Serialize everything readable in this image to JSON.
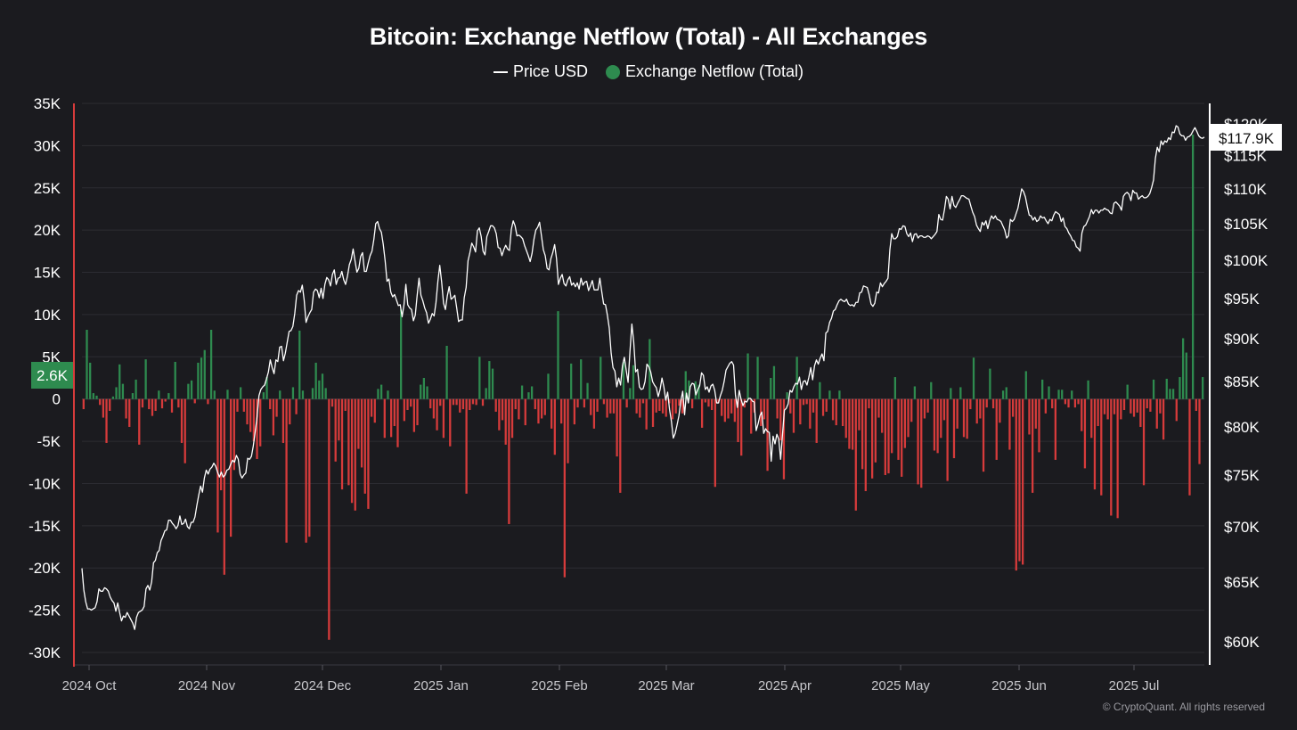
{
  "title": "Bitcoin: Exchange Netflow (Total) - All Exchanges",
  "legend": {
    "price_label": "Price USD",
    "netflow_label": "Exchange Netflow (Total)"
  },
  "copyright": "© CryptoQuant. All rights reserved",
  "colors": {
    "background": "#1b1b1f",
    "positive": "#2e8b4f",
    "negative": "#d63b3b",
    "price_line": "#ffffff"
  },
  "chart_data": {
    "type": "bar+line",
    "title": "Bitcoin: Exchange Netflow (Total) - All Exchanges",
    "x_tick_labels": [
      "2024 Oct",
      "2024 Nov",
      "2024 Dec",
      "2025 Jan",
      "2025 Feb",
      "2025 Mar",
      "2025 Apr",
      "2025 May",
      "2025 Jun",
      "2025 Jul"
    ],
    "left_axis": {
      "label": "Exchange Netflow (Total)",
      "ylim": [
        -30000,
        35000
      ],
      "ticks": [
        35000,
        30000,
        25000,
        20000,
        15000,
        10000,
        5000,
        0,
        -5000,
        -10000,
        -15000,
        -20000,
        -25000,
        -30000
      ],
      "tick_labels": [
        "35K",
        "30K",
        "25K",
        "20K",
        "15K",
        "10K",
        "5K",
        "0",
        "-5K",
        "-10K",
        "-15K",
        "-20K",
        "-25K",
        "-30K"
      ]
    },
    "right_axis": {
      "label": "Price USD",
      "scale": "log",
      "ticks": [
        120000,
        115000,
        110000,
        105000,
        100000,
        95000,
        90000,
        85000,
        80000,
        75000,
        70000,
        65000,
        60000
      ],
      "tick_labels": [
        "$120K",
        "$115K",
        "$110K",
        "$105K",
        "$100K",
        "$95K",
        "$90K",
        "$85K",
        "$80K",
        "$75K",
        "$70K",
        "$65K",
        "$60K"
      ]
    },
    "current_netflow_label": "2.6K",
    "current_price_label": "$117.9K",
    "series": [
      {
        "name": "Exchange Netflow (Total)",
        "type": "bar",
        "values": [
          -1200,
          8200,
          4300,
          700,
          400,
          -700,
          -2200,
          -5200,
          -1400,
          300,
          1400,
          4100,
          1800,
          -2300,
          -3300,
          700,
          2300,
          -5400,
          -1000,
          4700,
          -1200,
          -2000,
          -1400,
          1000,
          -1100,
          -300,
          700,
          -1600,
          4400,
          -1000,
          -5200,
          -7600,
          1800,
          2200,
          -500,
          4300,
          4900,
          5800,
          -600,
          8200,
          1000,
          -15800,
          -10800,
          -20800,
          1100,
          -16300,
          -8400,
          -1500,
          1400,
          -1500,
          -3000,
          -3900,
          -5000,
          -7100,
          -5600,
          800,
          2600,
          -1200,
          -4300,
          -2100,
          1000,
          -5200,
          -17000,
          -3000,
          1400,
          -1800,
          8100,
          1000,
          -17000,
          -16300,
          1300,
          4300,
          2200,
          3000,
          1300,
          -28500,
          -900,
          -7400,
          -4900,
          -10700,
          -1400,
          -10200,
          -12300,
          -13200,
          -5900,
          -8100,
          -11200,
          -13000,
          -2100,
          -2800,
          1200,
          1700,
          -4600,
          1000,
          -4500,
          -3200,
          -5700,
          10600,
          -2600,
          -1300,
          -900,
          -3900,
          -3100,
          1700,
          2500,
          1500,
          -1100,
          -2300,
          -3700,
          -800,
          -4600,
          6300,
          -5600,
          -700,
          -700,
          -1600,
          -1200,
          -11200,
          -1300,
          -600,
          -700,
          5000,
          -800,
          1300,
          4500,
          3600,
          -1500,
          -3700,
          -2500,
          -5400,
          -14800,
          -4600,
          -1200,
          -2400,
          1600,
          -3100,
          800,
          1500,
          -1200,
          -2900,
          -2300,
          -1900,
          3000,
          -3500,
          -6600,
          10400,
          -2900,
          -21100,
          -7600,
          4200,
          -3000,
          -1000,
          4700,
          -1000,
          1900,
          -1900,
          -3500,
          -1500,
          5000,
          -600,
          -2200,
          -1700,
          -1700,
          -6800,
          -11100,
          4400,
          -1000,
          1300,
          4000,
          -1700,
          -2200,
          -500,
          -3600,
          7100,
          -3300,
          -1600,
          -1400,
          -1700,
          -2100,
          -500,
          -2400,
          -1700,
          -800,
          -1700,
          3300,
          2200,
          -1100,
          2100,
          1700,
          -3400,
          -400,
          -900,
          -1300,
          -10400,
          -500,
          -2000,
          -2700,
          -2300,
          -1700,
          -2700,
          -5100,
          -6700,
          -1000,
          5400,
          -4100,
          -1600,
          5000,
          -3200,
          -2400,
          -8500,
          2500,
          3900,
          -2300,
          -4900,
          -9500,
          800,
          -1700,
          -4000,
          5000,
          -3000,
          -700,
          -600,
          -3500,
          -1600,
          -5200,
          2000,
          -2000,
          -1500,
          1000,
          -2500,
          -3100,
          1000,
          -3200,
          -4600,
          -5900,
          -6000,
          -13200,
          -3700,
          -8300,
          -10900,
          -1100,
          -9400,
          -7500,
          -2200,
          -4000,
          -9000,
          -8800,
          -6400,
          2600,
          -7200,
          -9200,
          -5800,
          -4500,
          -2700,
          1500,
          -10100,
          -10500,
          -2300,
          -1600,
          2000,
          -6100,
          -6400,
          -4600,
          -2500,
          -9700,
          1300,
          -7000,
          -3500,
          1400,
          -4500,
          -4700,
          -1200,
          4900,
          -2900,
          -2300,
          -8600,
          -1000,
          3600,
          -1100,
          -7200,
          -2800,
          1000,
          1400,
          -6000,
          -2100,
          -20300,
          -19200,
          -19600,
          3300,
          -4200,
          -11100,
          -3500,
          -6300,
          2300,
          -1700,
          1500,
          -1100,
          -7200,
          1100,
          1100,
          -600,
          -1000,
          1000,
          -1000,
          -600,
          -3800,
          -8200,
          2200,
          -4600,
          -10700,
          -3200,
          -11400,
          -1800,
          -2400,
          -13800,
          -1800,
          -14100,
          -2400,
          -1300,
          1700,
          -1700,
          -2100,
          -1600,
          -3300,
          -10200,
          -1100,
          -1500,
          2300,
          -3500,
          -1700,
          -4800,
          2400,
          1200,
          1200,
          -2600,
          2600,
          7200,
          5500,
          -11400,
          31300,
          -1400,
          -7700,
          2600
        ]
      },
      {
        "name": "Price USD",
        "type": "line",
        "values": [
          66200,
          64300,
          63300,
          62700,
          62700,
          62600,
          62700,
          62800,
          63300,
          64400,
          64200,
          64200,
          64500,
          64400,
          64200,
          63700,
          63400,
          63200,
          62500,
          63200,
          62400,
          61700,
          62100,
          62000,
          62400,
          62100,
          61800,
          61500,
          61000,
          62000,
          62400,
          62500,
          62600,
          62900,
          64400,
          64700,
          64300,
          65000,
          66700,
          66900,
          67600,
          67800,
          68700,
          69100,
          69600,
          69700,
          70600,
          70600,
          70300,
          70100,
          69800,
          70100,
          71000,
          70200,
          70300,
          70700,
          70000,
          69800,
          70400,
          70400,
          70900,
          72000,
          73000,
          73900,
          73300,
          74700,
          75500,
          75100,
          75600,
          75800,
          76200,
          75900,
          75300,
          74800,
          75300,
          74800,
          75000,
          75500,
          75600,
          76100,
          76500,
          76300,
          77000,
          76600,
          75100,
          74700,
          75000,
          75200,
          76700,
          76600,
          76900,
          78000,
          79500,
          81100,
          83400,
          84100,
          84400,
          84600,
          85300,
          86100,
          87500,
          86600,
          85900,
          87500,
          87300,
          89000,
          89100,
          87400,
          88300,
          89600,
          90900,
          91000,
          91500,
          93100,
          95400,
          96000,
          95800,
          96700,
          94800,
          92000,
          92700,
          93200,
          93600,
          95800,
          96200,
          96000,
          95100,
          96300,
          95000,
          96800,
          97700,
          97400,
          96600,
          98100,
          98700,
          96800,
          97600,
          97700,
          98500,
          97400,
          96800,
          97900,
          99400,
          100100,
          101500,
          99900,
          98400,
          98900,
          100500,
          101000,
          98500,
          98500,
          99600,
          100600,
          101200,
          102800,
          105000,
          105300,
          104300,
          103800,
          102100,
          99900,
          97200,
          97500,
          95800,
          95200,
          95500,
          94800,
          94100,
          94200,
          92700,
          94200,
          96800,
          94200,
          93800,
          93600,
          92200,
          92900,
          95400,
          97600,
          95400,
          94700,
          93800,
          93200,
          91900,
          92400,
          93100,
          92800,
          94500,
          97200,
          99300,
          97100,
          94400,
          93600,
          95300,
          96500,
          94900,
          95100,
          95400,
          93800,
          92100,
          92300,
          92300,
          95100,
          96400,
          99900,
          101000,
          102300,
          101800,
          101100,
          104000,
          104400,
          103200,
          101200,
          100700,
          103200,
          103900,
          104700,
          104700,
          104400,
          103600,
          101700,
          101600,
          100600,
          101400,
          102000,
          101500,
          101300,
          104200,
          105400,
          104700,
          103300,
          103400,
          103200,
          102900,
          102000,
          101300,
          100600,
          99800,
          100900,
          102800,
          104100,
          104500,
          105200,
          103300,
          101400,
          100600,
          98900,
          98700,
          100200,
          101000,
          102100,
          100200,
          96800,
          97600,
          98100,
          96900,
          96600,
          97400,
          97800,
          96700,
          97000,
          96500,
          97000,
          96200,
          97600,
          96700,
          97100,
          97200,
          96000,
          96600,
          97300,
          96100,
          96100,
          96100,
          97600,
          95900,
          94300,
          94200,
          92900,
          91300,
          88300,
          86600,
          86200,
          84400,
          85400,
          84600,
          86800,
          87800,
          86300,
          84900,
          88500,
          91800,
          89600,
          86100,
          86400,
          84400,
          84100,
          84200,
          85000,
          87000,
          86700,
          86100,
          85000,
          84600,
          84300,
          83300,
          84100,
          85400,
          84400,
          82900,
          83800,
          81900,
          80600,
          78800,
          79300,
          80200,
          81200,
          82800,
          83900,
          81300,
          83700,
          82600,
          84400,
          84800,
          84700,
          83500,
          84100,
          84500,
          86000,
          85700,
          84100,
          84400,
          83800,
          84500,
          84700,
          84000,
          82600,
          82600,
          83400,
          84000,
          85000,
          86300,
          86700,
          87100,
          87300,
          86900,
          83500,
          82100,
          84000,
          83000,
          82300,
          82800,
          82700,
          83100,
          83100,
          82800,
          82700,
          79600,
          80300,
          81200,
          81600,
          79300,
          79800,
          79500,
          79400,
          76400,
          79000,
          78200,
          79200,
          78700,
          76600,
          79200,
          81800,
          82000,
          82500,
          84000,
          83800,
          84400,
          84800,
          84700,
          85500,
          84100,
          85000,
          85100,
          84600,
          85500,
          86600,
          85200,
          86800,
          87500,
          87000,
          87700,
          88200,
          87400,
          90700,
          90900,
          92000,
          92500,
          93400,
          93600,
          94200,
          94700,
          94900,
          94700,
          94600,
          94900,
          94300,
          94100,
          94200,
          94000,
          94500,
          94500,
          95700,
          95800,
          96600,
          96500,
          96400,
          95500,
          94300,
          94000,
          94400,
          95800,
          95700,
          97000,
          96500,
          96900,
          97200,
          97600,
          101400,
          103600,
          102900,
          102900,
          103200,
          104300,
          104200,
          104700,
          104600,
          103600,
          103200,
          103700,
          102500,
          103500,
          103600,
          103000,
          103300,
          103300,
          103100,
          103100,
          103300,
          103200,
          102900,
          103200,
          103500,
          103900,
          106300,
          105600,
          105500,
          107000,
          108900,
          108500,
          107100,
          108900,
          107600,
          107300,
          107900,
          108400,
          109000,
          109000,
          108800,
          108600,
          108500,
          107500,
          106600,
          106000,
          104800,
          104300,
          103900,
          105200,
          104800,
          105400,
          104300,
          105400,
          106100,
          105700,
          106100,
          105600,
          105500,
          105300,
          104700,
          104100,
          103000,
          103300,
          105600,
          105300,
          105600,
          106400,
          107200,
          108600,
          110000,
          109600,
          108800,
          107400,
          106200,
          106100,
          105500,
          105900,
          105300,
          105500,
          106100,
          105800,
          105900,
          105400,
          105000,
          105600,
          105400,
          106200,
          106700,
          106500,
          106300,
          105300,
          105800,
          104600,
          104300,
          103700,
          103300,
          102700,
          102600,
          101800,
          101600,
          101200,
          103700,
          104600,
          104800,
          105400,
          106000,
          107000,
          106400,
          106900,
          106900,
          106500,
          106900,
          106900,
          107200,
          107000,
          106900,
          106500,
          106400,
          107900,
          108100,
          107800,
          107500,
          106900,
          108900,
          109300,
          109500,
          109200,
          108300,
          109800,
          109400,
          109400,
          108500,
          108800,
          109000,
          108700,
          108700,
          108900,
          109300,
          110200,
          111300,
          114600,
          116300,
          115600,
          117300,
          116700,
          117300,
          117100,
          117800,
          117500,
          118700,
          118600,
          119700,
          119500,
          118400,
          118100,
          118100,
          117400,
          117900,
          118000,
          118300,
          118900,
          119400,
          118800,
          118100,
          117800,
          117700,
          117900
        ]
      }
    ]
  }
}
